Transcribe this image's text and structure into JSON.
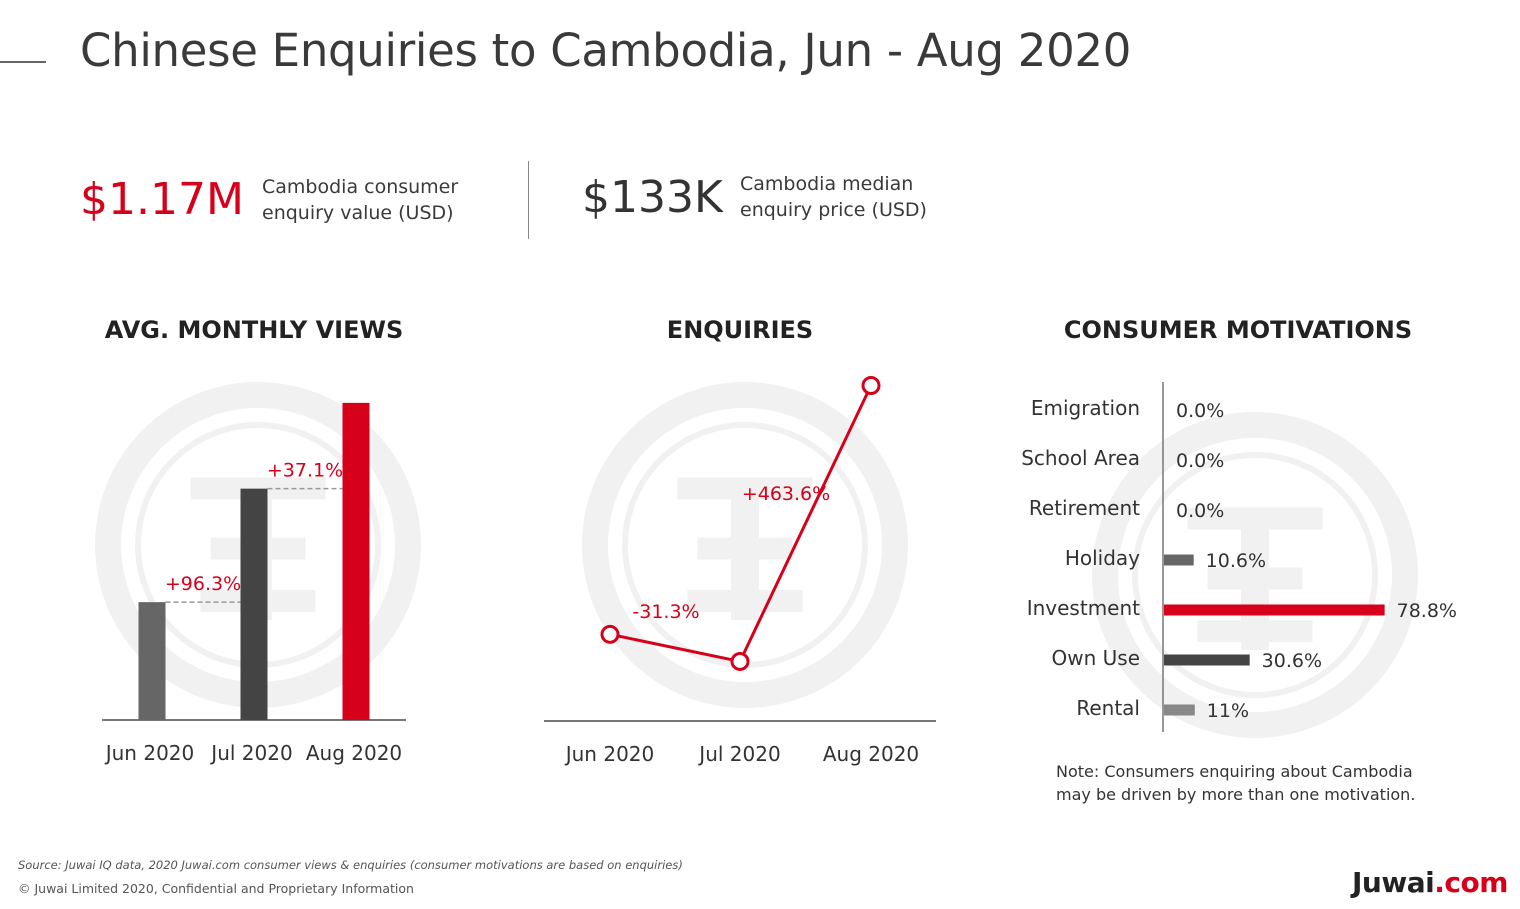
{
  "title": "Chinese Enquiries to Cambodia, Jun - Aug 2020",
  "kpis": [
    {
      "value": "$1.17M",
      "label_line1": "Cambodia consumer",
      "label_line2": "enquiry value (USD)",
      "color": "#d7001a"
    },
    {
      "value": "$133K",
      "label_line1": "Cambodia median",
      "label_line2": "enquiry price (USD)",
      "color": "#333333"
    }
  ],
  "colors": {
    "accent": "#d7001a",
    "dark": "#444444",
    "mid": "#666666",
    "light": "#888888",
    "watermark": "#f1f1f1"
  },
  "watermark_icon": "juwai-seal-watermark-icon",
  "chart_data": [
    {
      "type": "bar",
      "title": "AVG. MONTHLY VIEWS",
      "categories": [
        "Jun 2020",
        "Jul 2020",
        "Aug 2020"
      ],
      "values": [
        1.0,
        1.963,
        2.691
      ],
      "annotations": [
        "+96.3%",
        "+37.1%"
      ],
      "bar_colors": [
        "#666666",
        "#444444",
        "#d7001a"
      ],
      "ylim": [
        0,
        2.8
      ]
    },
    {
      "type": "line",
      "title": "ENQUIRIES",
      "categories": [
        "Jun 2020",
        "Jul 2020",
        "Aug 2020"
      ],
      "values": [
        1.0,
        0.687,
        3.871
      ],
      "annotations": [
        "-31.3%",
        "+463.6%"
      ],
      "ylim": [
        0,
        4.5
      ]
    },
    {
      "type": "bar",
      "orientation": "horizontal",
      "title": "CONSUMER MOTIVATIONS",
      "categories": [
        "Emigration",
        "School Area",
        "Retirement",
        "Holiday",
        "Investment",
        "Own Use",
        "Rental"
      ],
      "values": [
        0.0,
        0.0,
        0.0,
        10.6,
        78.8,
        30.6,
        11
      ],
      "value_labels": [
        "0.0%",
        "0.0%",
        "0.0%",
        "10.6%",
        "78.8%",
        "30.6%",
        "11%"
      ],
      "bar_colors": [
        "#666666",
        "#666666",
        "#666666",
        "#666666",
        "#d7001a",
        "#444444",
        "#888888"
      ],
      "xlim": [
        0,
        100
      ]
    }
  ],
  "note": {
    "line1": "Note: Consumers enquiring about Cambodia",
    "line2": "may be driven by more than one motivation."
  },
  "footer": {
    "source": "Source: Juwai IQ data, 2020 Juwai.com consumer views & enquiries (consumer motivations are based on enquiries)",
    "copyright": "© Juwai Limited 2020, Confidential and Proprietary Information",
    "logo_name": "Juwai",
    "logo_suffix": ".com"
  }
}
